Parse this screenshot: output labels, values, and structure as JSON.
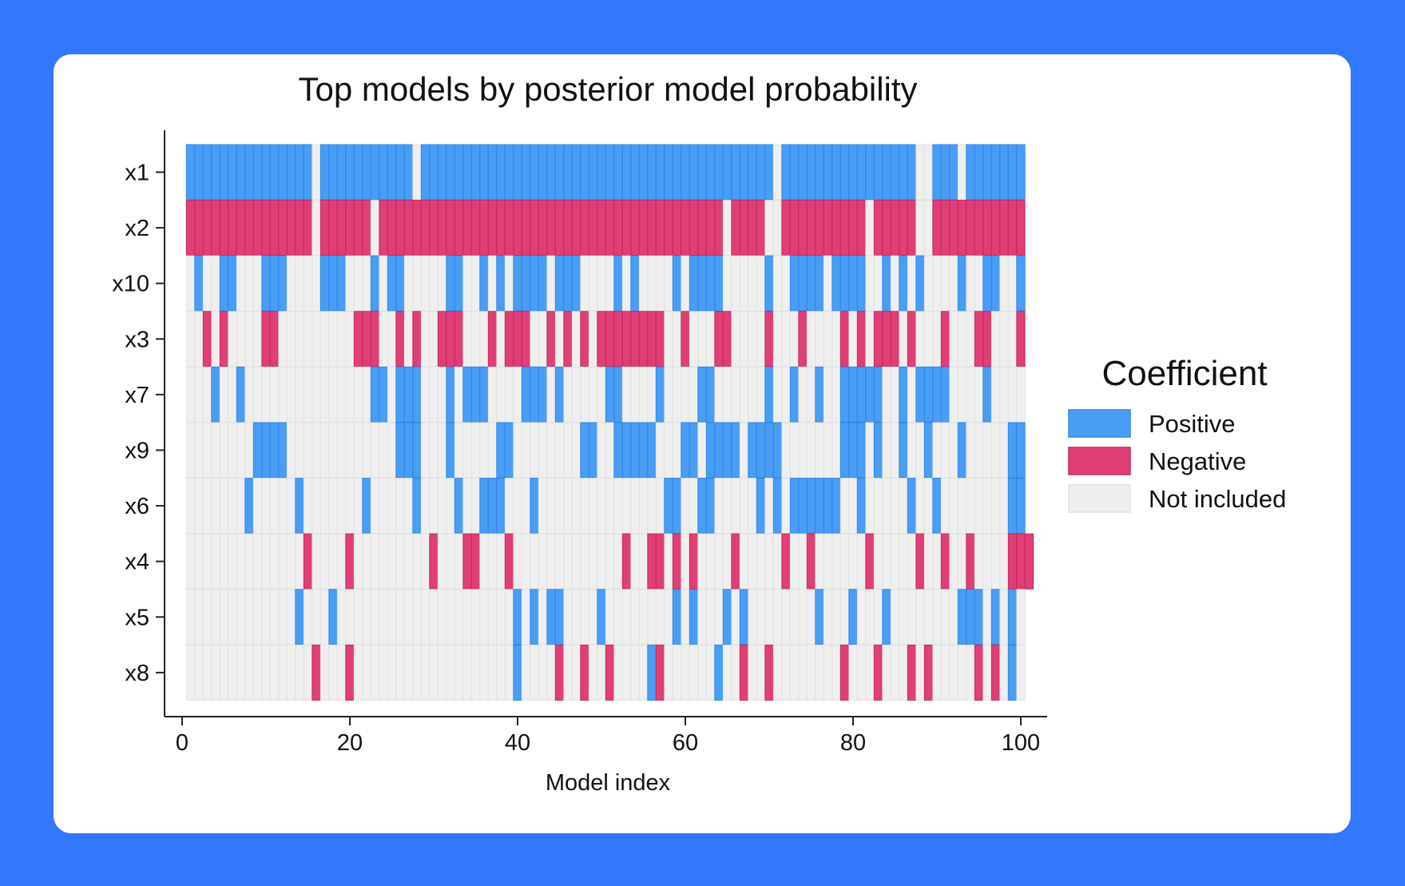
{
  "chart_data": {
    "type": "heatmap",
    "title": "Top models by posterior model probability",
    "xlabel": "Model index",
    "ylabel": "",
    "xlim": [
      -1,
      103
    ],
    "x_ticks": [
      0,
      20,
      40,
      60,
      80,
      100
    ],
    "models": 100,
    "variables": [
      "x1",
      "x2",
      "x10",
      "x3",
      "x7",
      "x9",
      "x6",
      "x4",
      "x5",
      "x8"
    ],
    "legend": {
      "title": "Coefficient",
      "position": "right",
      "entries": [
        {
          "label": "Positive",
          "code": 1,
          "color": "#4A9DF5"
        },
        {
          "label": "Negative",
          "code": -1,
          "color": "#DF3F76"
        },
        {
          "label": "Not included",
          "code": 0,
          "color": "#EFEFEF"
        }
      ]
    },
    "rows": {
      "x1": [
        1,
        1,
        1,
        1,
        1,
        1,
        1,
        1,
        1,
        1,
        1,
        1,
        1,
        1,
        1,
        0,
        1,
        1,
        1,
        1,
        1,
        1,
        1,
        1,
        1,
        1,
        1,
        0,
        1,
        1,
        1,
        1,
        1,
        1,
        1,
        1,
        1,
        1,
        1,
        1,
        1,
        1,
        1,
        1,
        1,
        1,
        1,
        1,
        1,
        1,
        1,
        1,
        1,
        1,
        1,
        1,
        1,
        1,
        1,
        1,
        1,
        1,
        1,
        1,
        1,
        1,
        1,
        1,
        1,
        1,
        0,
        1,
        1,
        1,
        1,
        1,
        1,
        1,
        1,
        1,
        1,
        1,
        1,
        1,
        1,
        1,
        1,
        0,
        0,
        1,
        1,
        1,
        0,
        1,
        1,
        1,
        1,
        1,
        1,
        1
      ],
      "x2": [
        -1,
        -1,
        -1,
        -1,
        -1,
        -1,
        -1,
        -1,
        -1,
        -1,
        -1,
        -1,
        -1,
        -1,
        -1,
        0,
        -1,
        -1,
        -1,
        -1,
        -1,
        -1,
        0,
        -1,
        -1,
        -1,
        -1,
        -1,
        -1,
        -1,
        -1,
        -1,
        -1,
        -1,
        -1,
        -1,
        -1,
        -1,
        -1,
        -1,
        -1,
        -1,
        -1,
        -1,
        -1,
        -1,
        -1,
        -1,
        -1,
        -1,
        -1,
        -1,
        -1,
        -1,
        -1,
        -1,
        -1,
        -1,
        -1,
        -1,
        -1,
        -1,
        -1,
        -1,
        0,
        -1,
        -1,
        -1,
        -1,
        0,
        0,
        -1,
        -1,
        -1,
        -1,
        -1,
        -1,
        -1,
        -1,
        -1,
        -1,
        0,
        -1,
        -1,
        -1,
        -1,
        -1,
        0,
        0,
        -1,
        -1,
        -1,
        -1,
        -1,
        -1,
        -1,
        -1,
        -1,
        -1,
        -1
      ],
      "x10": [
        0,
        1,
        0,
        0,
        1,
        1,
        0,
        0,
        0,
        1,
        1,
        1,
        0,
        0,
        0,
        0,
        1,
        1,
        1,
        0,
        0,
        0,
        1,
        0,
        1,
        1,
        0,
        0,
        0,
        0,
        0,
        1,
        1,
        0,
        0,
        1,
        0,
        1,
        0,
        1,
        1,
        1,
        1,
        0,
        1,
        1,
        1,
        0,
        0,
        0,
        0,
        1,
        0,
        1,
        0,
        0,
        0,
        0,
        1,
        0,
        1,
        1,
        1,
        1,
        0,
        0,
        0,
        0,
        0,
        1,
        0,
        0,
        1,
        1,
        1,
        1,
        0,
        1,
        1,
        1,
        1,
        0,
        0,
        1,
        0,
        1,
        0,
        1,
        0,
        0,
        0,
        0,
        1,
        0,
        0,
        1,
        1,
        0,
        0,
        1
      ],
      "x3": [
        0,
        0,
        -1,
        0,
        -1,
        0,
        0,
        0,
        0,
        -1,
        -1,
        0,
        0,
        0,
        0,
        0,
        0,
        0,
        0,
        0,
        -1,
        -1,
        -1,
        0,
        0,
        -1,
        0,
        -1,
        0,
        0,
        -1,
        -1,
        -1,
        0,
        0,
        0,
        -1,
        0,
        -1,
        -1,
        -1,
        0,
        0,
        -1,
        0,
        -1,
        0,
        -1,
        0,
        -1,
        -1,
        -1,
        -1,
        -1,
        -1,
        -1,
        -1,
        0,
        0,
        -1,
        0,
        0,
        0,
        -1,
        -1,
        0,
        0,
        0,
        0,
        -1,
        0,
        0,
        0,
        -1,
        0,
        0,
        0,
        0,
        -1,
        0,
        -1,
        0,
        -1,
        -1,
        -1,
        0,
        -1,
        0,
        0,
        0,
        -1,
        0,
        0,
        0,
        -1,
        -1,
        0,
        0,
        0,
        -1
      ],
      "x7": [
        0,
        0,
        0,
        1,
        0,
        0,
        1,
        0,
        0,
        0,
        0,
        0,
        0,
        0,
        0,
        0,
        0,
        0,
        0,
        0,
        0,
        0,
        1,
        1,
        0,
        1,
        1,
        1,
        0,
        0,
        0,
        1,
        0,
        1,
        1,
        1,
        0,
        0,
        0,
        0,
        1,
        1,
        1,
        0,
        1,
        0,
        0,
        0,
        0,
        0,
        1,
        1,
        0,
        0,
        0,
        0,
        1,
        0,
        0,
        0,
        0,
        1,
        1,
        0,
        0,
        0,
        0,
        0,
        0,
        1,
        0,
        0,
        1,
        0,
        0,
        1,
        0,
        0,
        1,
        1,
        1,
        1,
        1,
        0,
        0,
        1,
        0,
        1,
        1,
        1,
        1,
        0,
        0,
        0,
        0,
        1,
        0,
        0,
        0,
        0
      ],
      "x9": [
        0,
        0,
        0,
        0,
        0,
        0,
        0,
        0,
        1,
        1,
        1,
        1,
        0,
        0,
        0,
        0,
        0,
        0,
        0,
        0,
        0,
        0,
        0,
        0,
        0,
        1,
        1,
        1,
        0,
        0,
        0,
        1,
        0,
        0,
        0,
        0,
        0,
        1,
        1,
        0,
        0,
        0,
        0,
        0,
        0,
        0,
        0,
        1,
        1,
        0,
        0,
        1,
        1,
        1,
        1,
        1,
        0,
        0,
        0,
        1,
        1,
        0,
        1,
        1,
        1,
        1,
        0,
        1,
        1,
        1,
        1,
        0,
        0,
        0,
        0,
        0,
        0,
        0,
        1,
        1,
        1,
        0,
        1,
        0,
        0,
        1,
        0,
        0,
        1,
        0,
        0,
        0,
        1,
        0,
        0,
        0,
        0,
        0,
        1,
        1
      ],
      "x6": [
        0,
        0,
        0,
        0,
        0,
        0,
        0,
        1,
        0,
        0,
        0,
        0,
        0,
        1,
        0,
        0,
        0,
        0,
        0,
        0,
        0,
        1,
        0,
        0,
        0,
        0,
        0,
        1,
        0,
        0,
        0,
        0,
        1,
        0,
        0,
        1,
        1,
        1,
        0,
        0,
        0,
        1,
        0,
        0,
        0,
        0,
        0,
        0,
        0,
        0,
        0,
        0,
        0,
        0,
        0,
        0,
        0,
        1,
        1,
        0,
        0,
        1,
        1,
        0,
        0,
        0,
        0,
        0,
        1,
        0,
        1,
        0,
        1,
        1,
        1,
        1,
        1,
        1,
        0,
        0,
        1,
        0,
        0,
        0,
        0,
        0,
        1,
        0,
        0,
        1,
        0,
        0,
        0,
        0,
        0,
        0,
        0,
        0,
        1,
        1
      ],
      "x4": [
        0,
        0,
        0,
        0,
        0,
        0,
        0,
        0,
        0,
        0,
        0,
        0,
        0,
        0,
        -1,
        0,
        0,
        0,
        0,
        -1,
        0,
        0,
        0,
        0,
        0,
        0,
        0,
        0,
        0,
        -1,
        0,
        0,
        0,
        -1,
        -1,
        0,
        0,
        0,
        -1,
        0,
        0,
        0,
        0,
        0,
        0,
        0,
        0,
        0,
        0,
        0,
        0,
        0,
        -1,
        0,
        0,
        -1,
        -1,
        0,
        -1,
        0,
        -1,
        0,
        0,
        0,
        0,
        -1,
        0,
        0,
        0,
        0,
        0,
        -1,
        0,
        0,
        -1,
        0,
        0,
        0,
        0,
        0,
        0,
        -1,
        0,
        0,
        0,
        0,
        0,
        -1,
        0,
        0,
        -1,
        0,
        0,
        -1,
        0,
        0,
        0,
        0,
        -1,
        -1,
        -1
      ],
      "x5": [
        0,
        0,
        0,
        0,
        0,
        0,
        0,
        0,
        0,
        0,
        0,
        0,
        0,
        1,
        0,
        0,
        0,
        1,
        0,
        0,
        0,
        0,
        0,
        0,
        0,
        0,
        0,
        0,
        0,
        0,
        0,
        0,
        0,
        0,
        0,
        0,
        0,
        0,
        0,
        1,
        0,
        1,
        0,
        1,
        1,
        0,
        0,
        0,
        0,
        1,
        0,
        0,
        0,
        0,
        0,
        0,
        0,
        0,
        1,
        0,
        1,
        0,
        0,
        0,
        1,
        0,
        1,
        0,
        0,
        0,
        0,
        0,
        0,
        0,
        0,
        1,
        0,
        0,
        0,
        1,
        0,
        0,
        0,
        1,
        0,
        0,
        0,
        0,
        0,
        0,
        0,
        0,
        1,
        1,
        1,
        0,
        1,
        0,
        1,
        0
      ],
      "x8": [
        0,
        0,
        0,
        0,
        0,
        0,
        0,
        0,
        0,
        0,
        0,
        0,
        0,
        0,
        0,
        -1,
        0,
        0,
        0,
        -1,
        0,
        0,
        0,
        0,
        0,
        0,
        0,
        0,
        0,
        0,
        0,
        0,
        0,
        0,
        0,
        0,
        0,
        0,
        0,
        1,
        0,
        0,
        0,
        0,
        -1,
        0,
        0,
        -1,
        0,
        0,
        -1,
        0,
        0,
        0,
        0,
        1,
        -1,
        0,
        0,
        0,
        0,
        0,
        0,
        1,
        0,
        0,
        -1,
        0,
        0,
        -1,
        0,
        0,
        0,
        0,
        0,
        0,
        0,
        0,
        -1,
        0,
        0,
        0,
        -1,
        0,
        0,
        0,
        -1,
        0,
        -1,
        0,
        0,
        0,
        0,
        0,
        -1,
        0,
        -1,
        0,
        1,
        0
      ]
    }
  }
}
